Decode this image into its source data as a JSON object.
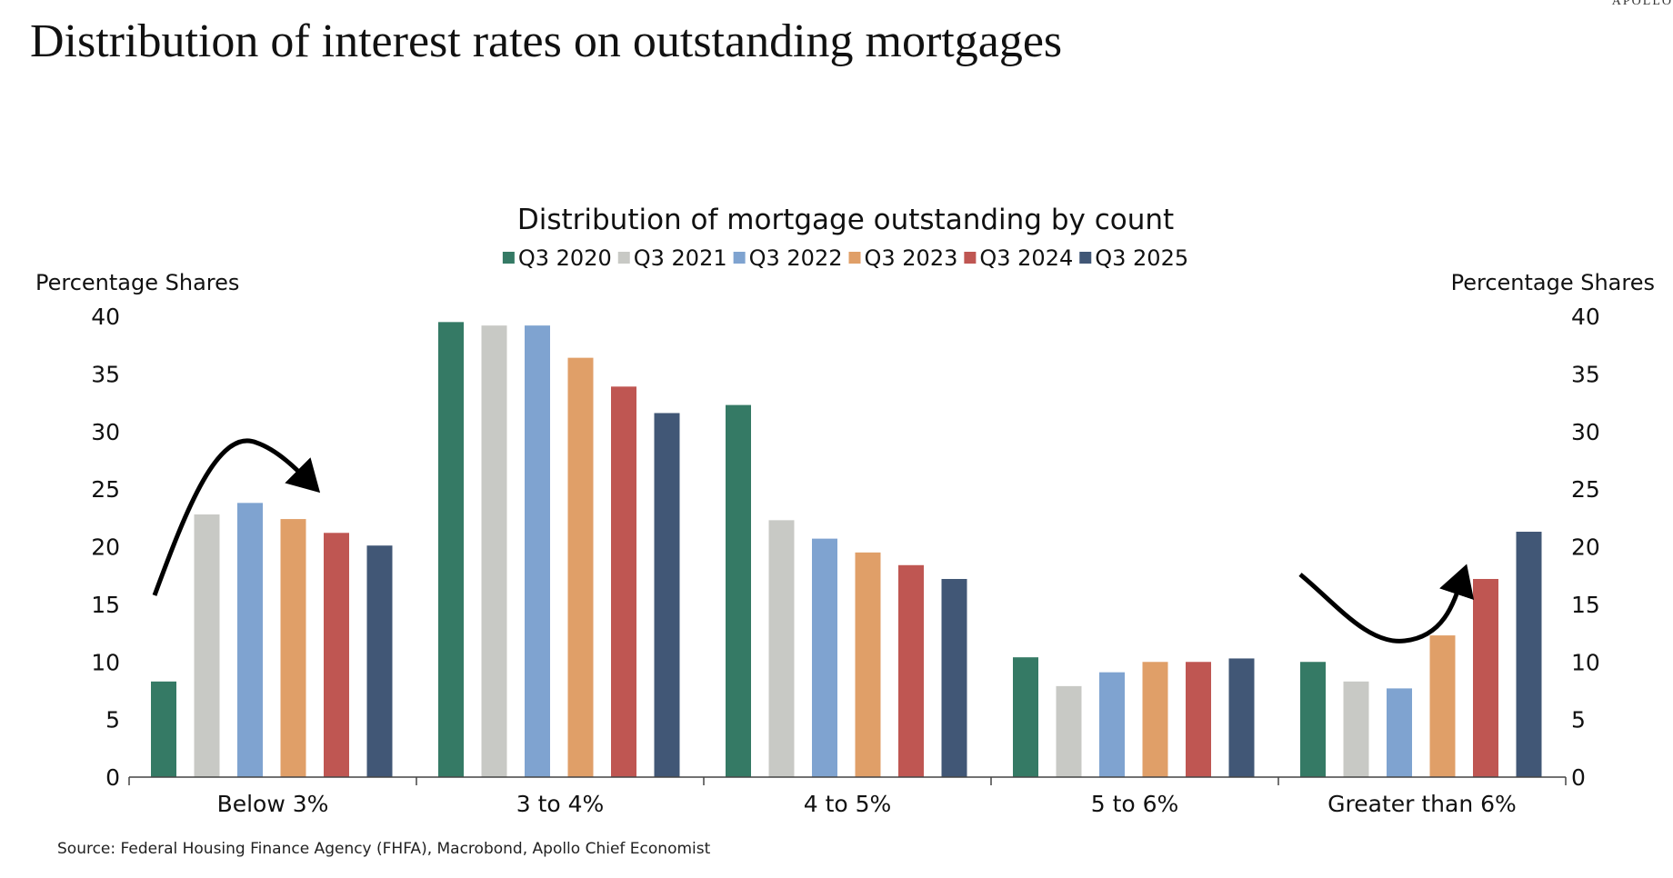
{
  "header": {
    "title": "Distribution of interest rates on outstanding mortgages",
    "logo": "APOLLO"
  },
  "footer": {
    "source": "Source: Federal Housing Finance Agency (FHFA), Macrobond, Apollo Chief Economist"
  },
  "chart_data": {
    "type": "bar",
    "title": "Distribution of mortgage outstanding by count",
    "ylabel_left": "Percentage Shares",
    "ylabel_right": "Percentage Shares",
    "xlabel": "",
    "ylim": [
      0,
      40
    ],
    "yticks": [
      0,
      5,
      10,
      15,
      20,
      25,
      30,
      35,
      40
    ],
    "categories": [
      "Below 3%",
      "3 to 4%",
      "4 to 5%",
      "5 to 6%",
      "Greater than 6%"
    ],
    "legend_position": "top-center",
    "series": [
      {
        "name": "Q3 2020",
        "color": "#357a65",
        "values": [
          8.3,
          39.5,
          32.3,
          10.4,
          10.0
        ]
      },
      {
        "name": "Q3 2021",
        "color": "#c8c9c5",
        "values": [
          22.8,
          39.2,
          22.3,
          7.9,
          8.3
        ]
      },
      {
        "name": "Q3 2022",
        "color": "#7fa3d0",
        "values": [
          23.8,
          39.2,
          20.7,
          9.1,
          7.7
        ]
      },
      {
        "name": "Q3 2023",
        "color": "#e09f68",
        "values": [
          22.4,
          36.4,
          19.5,
          10.0,
          12.3
        ]
      },
      {
        "name": "Q3 2024",
        "color": "#bf5652",
        "values": [
          21.2,
          33.9,
          18.4,
          10.0,
          17.2
        ]
      },
      {
        "name": "Q3 2025",
        "color": "#415776",
        "values": [
          20.1,
          31.6,
          17.2,
          10.3,
          21.3
        ]
      }
    ],
    "annotations": [
      {
        "type": "arrow",
        "description": "curved arrow over Below 3% rising then falling"
      },
      {
        "type": "arrow",
        "description": "curved arrow over Greater than 6% falling then rising"
      }
    ]
  }
}
